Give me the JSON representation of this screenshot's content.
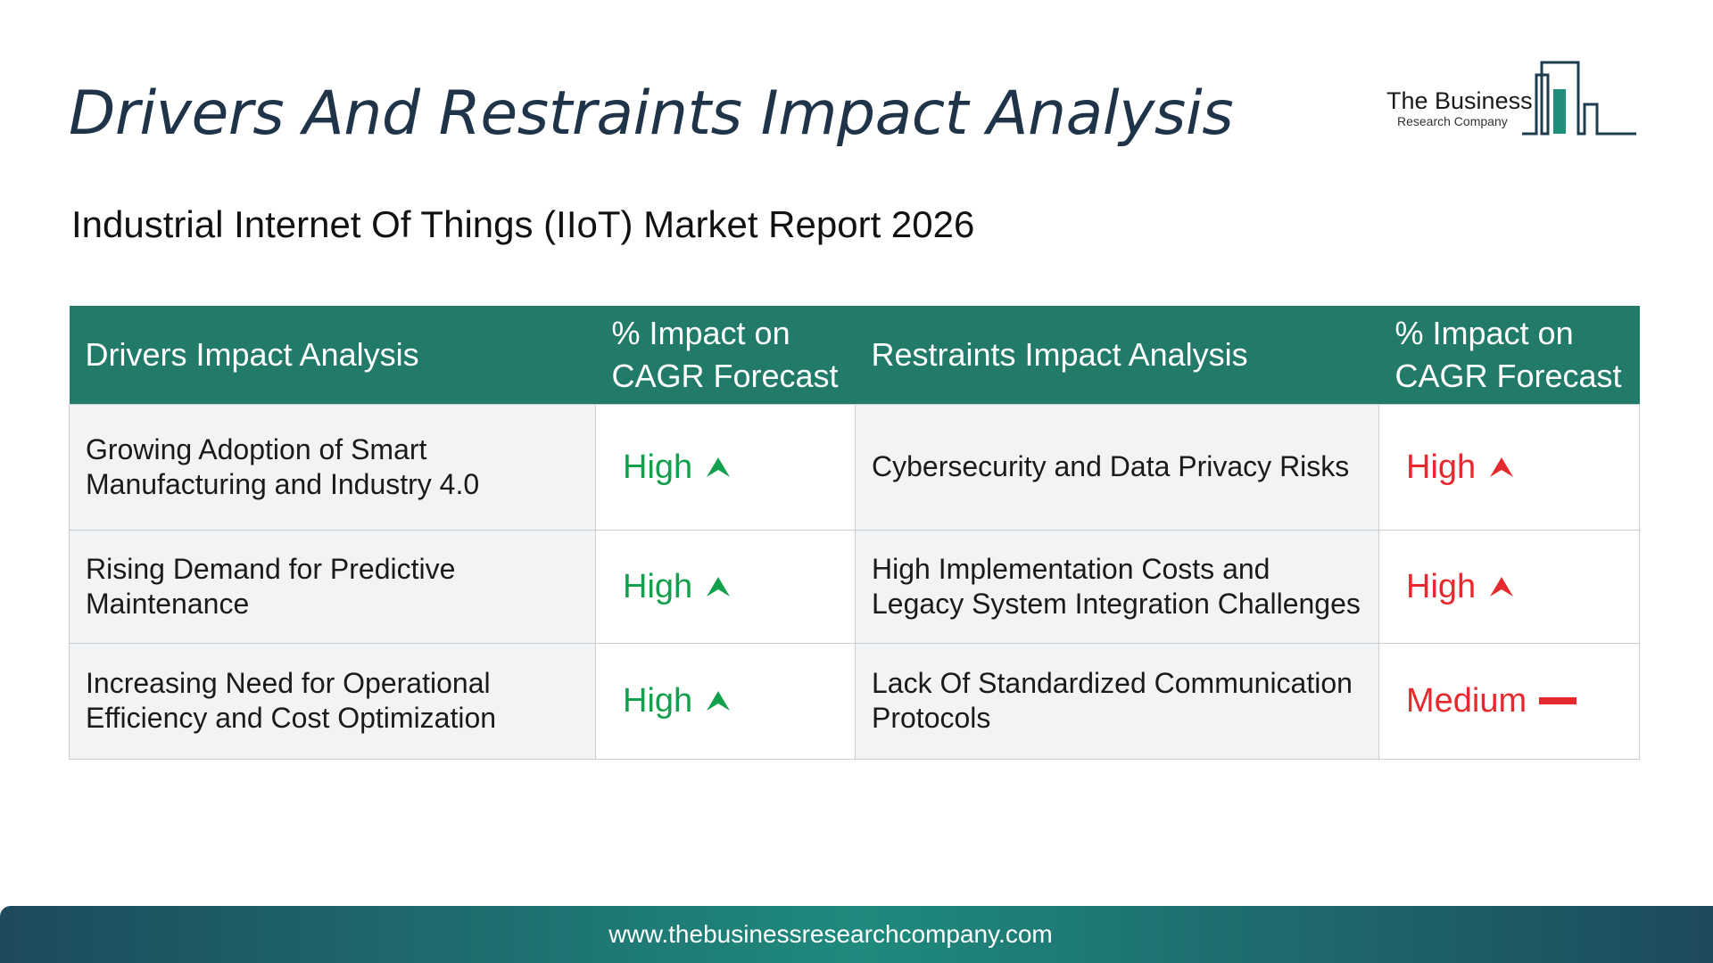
{
  "title": "Drivers And Restraints Impact Analysis",
  "subtitle": "Industrial Internet Of Things (IIoT) Market Report 2026",
  "logo": {
    "name": "The Business",
    "tagline": "Research Company",
    "accent": "#1f8f7c"
  },
  "table": {
    "headers": {
      "drivers": "Drivers Impact Analysis",
      "drivers_impact": "% Impact on CAGR Forecast",
      "restraints": "Restraints Impact Analysis",
      "restraints_impact": "% Impact on CAGR Forecast"
    },
    "rows": [
      {
        "driver": "Growing Adoption of Smart Manufacturing and Industry 4.0",
        "driver_impact": "High",
        "driver_icon": "arrow-up-icon",
        "restraint": "Cybersecurity and Data Privacy Risks",
        "restraint_impact": "High",
        "restraint_icon": "arrow-up-icon"
      },
      {
        "driver": "Rising Demand for Predictive Maintenance",
        "driver_impact": "High",
        "driver_icon": "arrow-up-icon",
        "restraint": "High Implementation Costs and Legacy System Integration Challenges",
        "restraint_impact": "High",
        "restraint_icon": "arrow-up-icon"
      },
      {
        "driver": "Increasing Need for Operational Efficiency and Cost Optimization",
        "driver_impact": "High",
        "driver_icon": "arrow-up-icon",
        "restraint": "Lack Of Standardized Communication Protocols",
        "restraint_impact": "Medium",
        "restraint_icon": "dash-icon"
      }
    ]
  },
  "colors": {
    "header_bg": "#227a69",
    "driver_impact": "#13a04c",
    "restraint_impact": "#e52a2f",
    "title": "#1f3349"
  },
  "footer": {
    "url": "www.thebusinessresearchcompany.com"
  }
}
